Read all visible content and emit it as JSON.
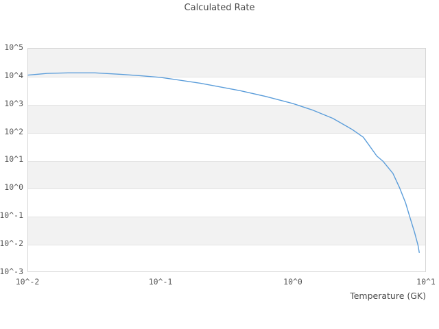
{
  "title": "Calculated Rate",
  "colors": {
    "line": "#5b9dda",
    "band": "#f2f2f2",
    "gridline": "#e3e3e3",
    "plot_border": "#d6d6d6",
    "tick_text": "#555555",
    "title_text": "#4a4a4a"
  },
  "axes": {
    "x_label": "Temperature (GK)",
    "x_ticks": [
      "10^-2",
      "10^-1",
      "10^0",
      "10^1"
    ],
    "y_ticks": [
      "10^5",
      "10^4",
      "10^3",
      "10^2",
      "10^1",
      "10^0",
      "10^-1",
      "10^-2",
      "10^-3"
    ]
  },
  "chart_data": {
    "type": "line",
    "title": "Calculated Rate",
    "xlabel": "Temperature (GK)",
    "ylabel": "",
    "x_scale": "log",
    "y_scale": "log",
    "xlim": [
      0.01,
      10
    ],
    "ylim": [
      0.001,
      100000
    ],
    "grid": "horizontal-bands-per-decade",
    "legend": "none",
    "series": [
      {
        "name": "calculated-rate",
        "color": "#5b9dda",
        "x": [
          0.01,
          0.014,
          0.02,
          0.032,
          0.05,
          0.07,
          0.1,
          0.2,
          0.4,
          0.63,
          1.0,
          1.4,
          2.0,
          2.8,
          3.4,
          3.7,
          4.3,
          4.8,
          5.7,
          6.4,
          7.1,
          7.6,
          8.3,
          8.8,
          9.0
        ],
        "y": [
          11200,
          12900,
          13500,
          13500,
          12000,
          10700,
          9300,
          5750,
          3090,
          1900,
          1070,
          630,
          316,
          126,
          66,
          38,
          14,
          9.0,
          3.3,
          1.0,
          0.29,
          0.098,
          0.025,
          0.0089,
          0.0048
        ]
      }
    ]
  }
}
